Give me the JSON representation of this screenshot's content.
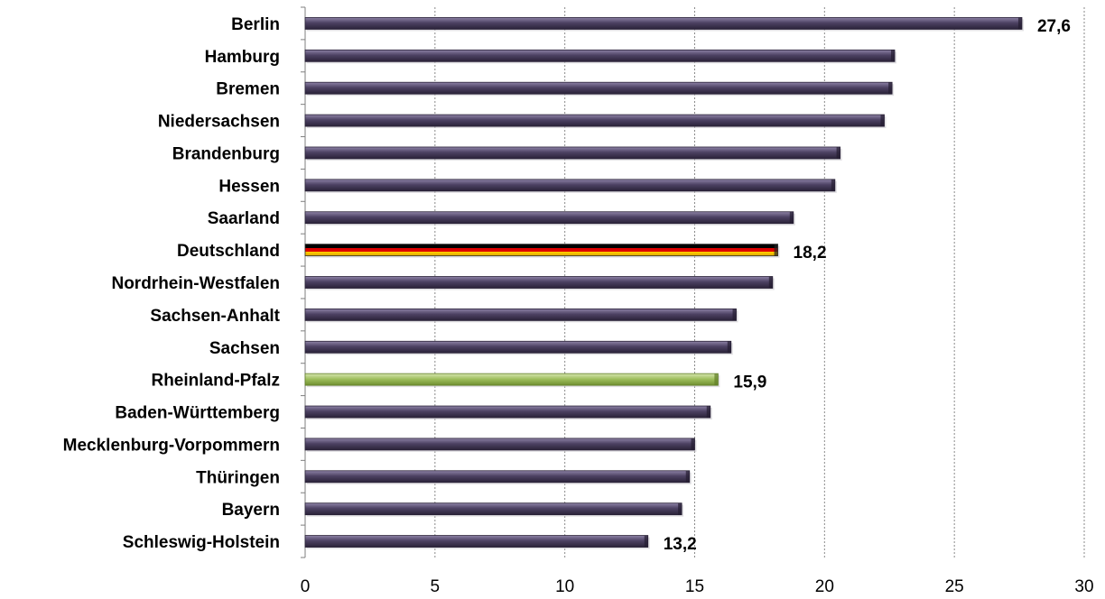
{
  "chart_data": {
    "type": "bar",
    "orientation": "horizontal",
    "categories": [
      "Berlin",
      "Hamburg",
      "Bremen",
      "Niedersachsen",
      "Brandenburg",
      "Hessen",
      "Saarland",
      "Deutschland",
      "Nordrhein-Westfalen",
      "Sachsen-Anhalt",
      "Sachsen",
      "Rheinland-Pfalz",
      "Baden-Württemberg",
      "Mecklenburg-Vorpommern",
      "Thüringen",
      "Bayern",
      "Schleswig-Holstein"
    ],
    "values": [
      27.6,
      22.7,
      22.6,
      22.3,
      20.6,
      20.4,
      18.8,
      18.2,
      18.0,
      16.6,
      16.4,
      15.9,
      15.6,
      15.0,
      14.8,
      14.5,
      13.2
    ],
    "data_labels": [
      {
        "category": "Berlin",
        "text": "27,6"
      },
      {
        "category": "Deutschland",
        "text": "18,2"
      },
      {
        "category": "Rheinland-Pfalz",
        "text": "15,9"
      },
      {
        "category": "Schleswig-Holstein",
        "text": "13,2"
      }
    ],
    "highlight": {
      "Deutschland": "germany-flag",
      "Rheinland-Pfalz": "green"
    },
    "xlim": [
      0,
      30
    ],
    "x_ticks": [
      0,
      5,
      10,
      15,
      20,
      25,
      30
    ],
    "grid": "vertical-dotted",
    "title": "",
    "xlabel": "",
    "ylabel": "",
    "colors": {
      "default_bar": "#4d4263",
      "highlight_green": "#9bbb59",
      "flag_black": "#000000",
      "flag_red": "#dd0000",
      "flag_gold": "#ffce00"
    }
  }
}
